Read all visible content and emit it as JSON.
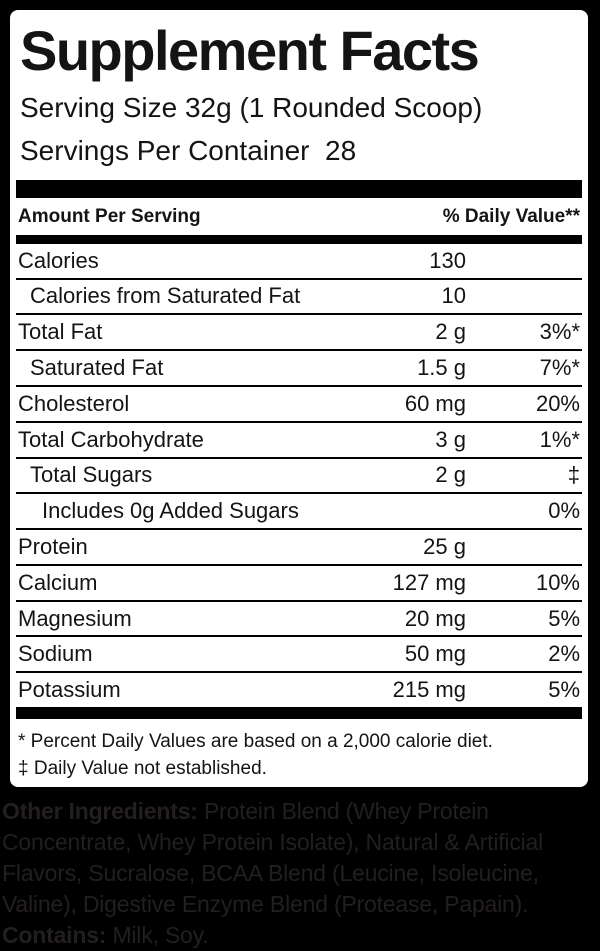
{
  "label": {
    "title": "Supplement Facts",
    "serving_size": "Serving Size 32g (1 Rounded Scoop)",
    "servings_per_container": "Servings Per Container  28",
    "header": {
      "amount": "Amount Per Serving",
      "daily_value": "% Daily Value**"
    },
    "rows": [
      {
        "name": "Calories",
        "amount": "130",
        "dv": "",
        "indent": 0
      },
      {
        "name": "Calories from Saturated Fat",
        "amount": "10",
        "dv": "",
        "indent": 1
      },
      {
        "name": "Total Fat",
        "amount": "2 g",
        "dv": "3%*",
        "indent": 0
      },
      {
        "name": "Saturated Fat",
        "amount": "1.5 g",
        "dv": "7%*",
        "indent": 1
      },
      {
        "name": "Cholesterol",
        "amount": "60 mg",
        "dv": "20%",
        "indent": 0
      },
      {
        "name": "Total Carbohydrate",
        "amount": "3 g",
        "dv": "1%*",
        "indent": 0
      },
      {
        "name": "Total Sugars",
        "amount": "2 g",
        "dv": "‡",
        "indent": 1
      },
      {
        "name": "Includes 0g Added Sugars",
        "amount": "",
        "dv": "0%",
        "indent": 2
      },
      {
        "name": "Protein",
        "amount": "25 g",
        "dv": "",
        "indent": 0
      },
      {
        "name": "Calcium",
        "amount": "127 mg",
        "dv": "10%",
        "indent": 0
      },
      {
        "name": "Magnesium",
        "amount": "20 mg",
        "dv": "5%",
        "indent": 0
      },
      {
        "name": "Sodium",
        "amount": "50 mg",
        "dv": "2%",
        "indent": 0
      },
      {
        "name": "Potassium",
        "amount": "215 mg",
        "dv": "5%",
        "indent": 0
      }
    ],
    "footnotes": [
      "* Percent Daily Values are based on a 2,000 calorie diet.",
      "‡ Daily Value not established."
    ]
  },
  "ingredients": {
    "other_label": "Other Ingredients:",
    "other_text": " Protein Blend (Whey Protein Concentrate, Whey Protein Isolate), Natural & Artificial Flavors, Sucralose, BCAA Blend (Leucine, Isoleucine, Valine), Digestive Enzyme Blend (Protease, Papain).",
    "contains_label": "Contains:",
    "contains_text": " Milk, Soy."
  },
  "colors": {
    "background": "#000000",
    "panel": "#ffffff",
    "label_text": "#141414",
    "ingredients_text": "#231f20"
  }
}
